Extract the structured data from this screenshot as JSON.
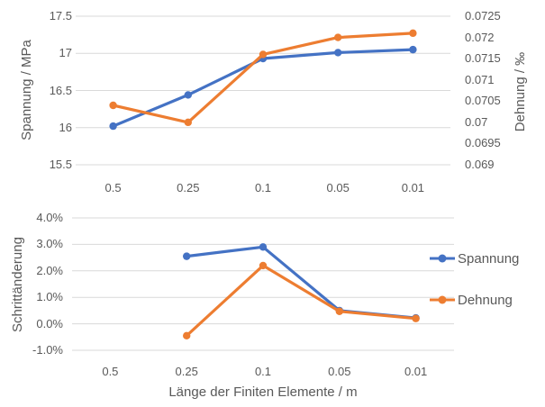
{
  "chart_data": [
    {
      "type": "line",
      "categories": [
        "0.5",
        "0.25",
        "0.1",
        "0.05",
        "0.01"
      ],
      "left_axis": {
        "title": "Spannung / MPa",
        "min": 15.5,
        "max": 17.5,
        "ticks": [
          "17.5",
          "17",
          "16.5",
          "16",
          "15.5"
        ]
      },
      "right_axis": {
        "title": "Dehnung / ‰",
        "min": 0.069,
        "max": 0.0725,
        "ticks": [
          "0.0725",
          "0.072",
          "0.0715",
          "0.071",
          "0.0705",
          "0.07",
          "0.0695",
          "0.069"
        ]
      },
      "grid": true,
      "series": [
        {
          "name": "Spannung",
          "axis": "left",
          "color": "#4472C4",
          "values": [
            16.02,
            16.44,
            16.93,
            17.01,
            17.05
          ]
        },
        {
          "name": "Dehnung",
          "axis": "right",
          "color": "#ED7D31",
          "values": [
            0.0704,
            0.07,
            0.0716,
            0.072,
            0.0721
          ]
        }
      ]
    },
    {
      "type": "line",
      "categories": [
        "0.5",
        "0.25",
        "0.1",
        "0.05",
        "0.01"
      ],
      "left_axis": {
        "title": "Schrittänderung",
        "min": -1.0,
        "max": 4.0,
        "ticks": [
          "4.0%",
          "3.0%",
          "2.0%",
          "1.0%",
          "0.0%",
          "-1.0%"
        ]
      },
      "x_axis_title": "Länge der Finiten Elemente / m",
      "grid": true,
      "series": [
        {
          "name": "Spannung",
          "axis": "left",
          "color": "#4472C4",
          "values": [
            null,
            2.55,
            2.9,
            0.5,
            0.22
          ]
        },
        {
          "name": "Dehnung",
          "axis": "left",
          "color": "#ED7D31",
          "values": [
            null,
            -0.45,
            2.2,
            0.47,
            0.2
          ]
        }
      ]
    }
  ],
  "legend": {
    "items": [
      {
        "label": "Spannung",
        "color": "#4472C4"
      },
      {
        "label": "Dehnung",
        "color": "#ED7D31"
      }
    ]
  },
  "style": {
    "gridline_color": "#D9D9D9",
    "text_color": "#595959",
    "background": "#FFFFFF",
    "spannung_color": "#4472C4",
    "dehnung_color": "#ED7D31"
  }
}
